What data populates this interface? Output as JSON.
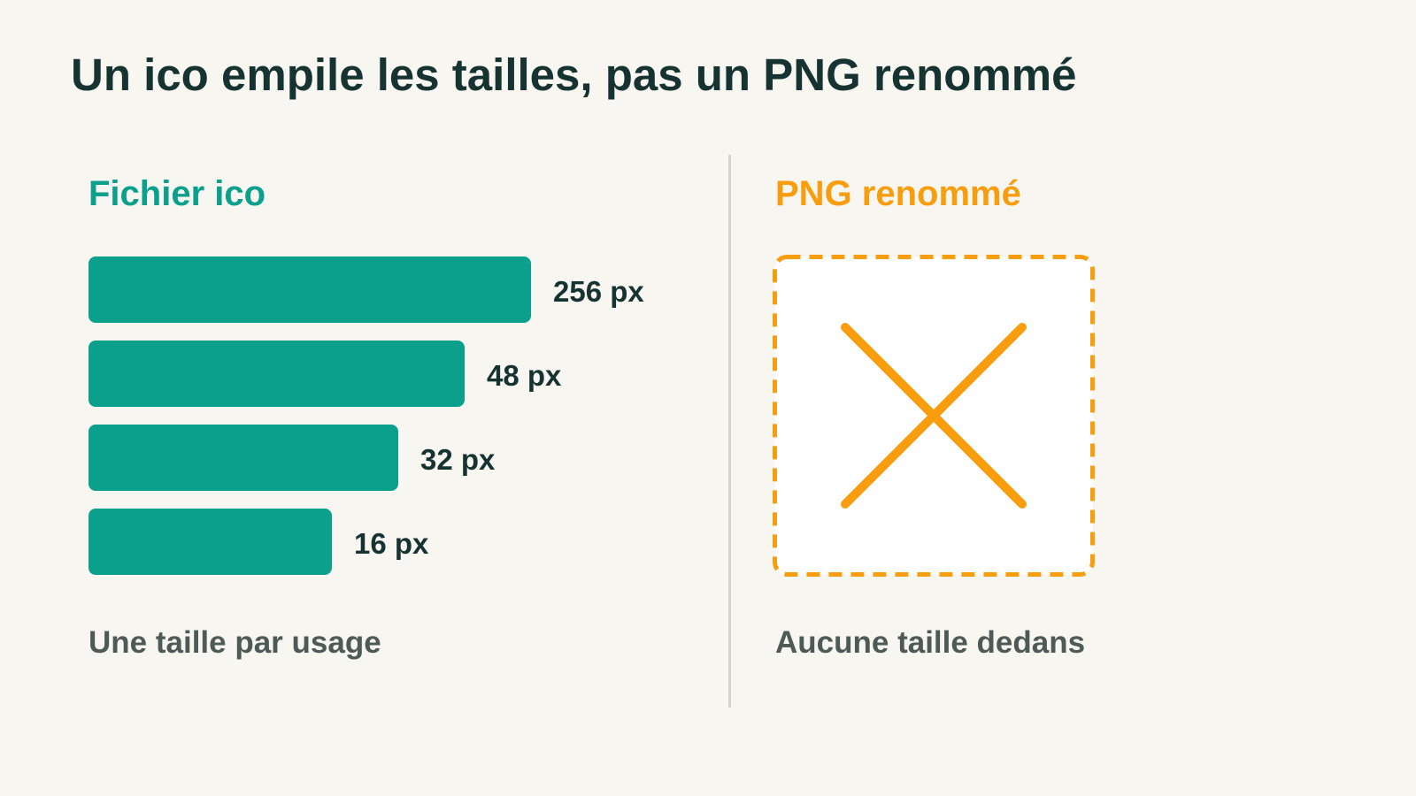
{
  "title": "Un ico empile les tailles, pas un PNG renommé",
  "ico_panel": {
    "heading": "Fichier ico",
    "caption": "Une taille par usage",
    "sizes": [
      {
        "label": "256 px"
      },
      {
        "label": "48 px"
      },
      {
        "label": "32 px"
      },
      {
        "label": "16 px"
      }
    ]
  },
  "png_panel": {
    "heading": "PNG renommé",
    "caption": "Aucune taille dedans",
    "icon": "cross-icon"
  },
  "colors": {
    "background": "#f7f6f1",
    "ico_accent": "#0aa08b",
    "png_accent": "#f89e0e",
    "title_text": "#173331",
    "caption_text": "#4d5a56",
    "divider": "#d6d4cb"
  }
}
